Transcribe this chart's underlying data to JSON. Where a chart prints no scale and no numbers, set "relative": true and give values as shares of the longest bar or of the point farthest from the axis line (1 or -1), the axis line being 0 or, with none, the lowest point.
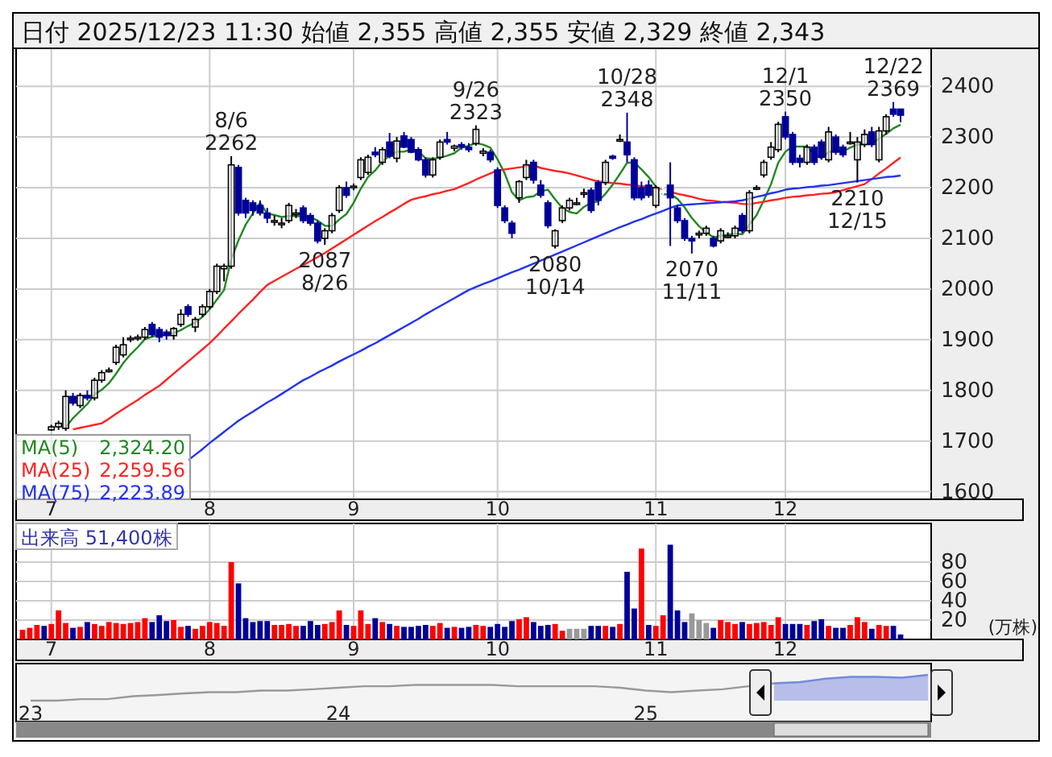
{
  "chart_data": [
    {
      "type": "candlestick",
      "title": "日付 2025/12/23 11:30 始値 2,355 高値 2,355 安値 2,329 終値 2,343",
      "categories": [
        null,
        null,
        null,
        null,
        "7",
        null,
        null,
        null,
        null,
        null,
        null,
        null,
        null,
        null,
        null,
        null,
        null,
        null,
        null,
        null,
        null,
        null,
        null,
        null,
        null,
        null,
        "8",
        null,
        null,
        null,
        null,
        null,
        null,
        null,
        null,
        null,
        null,
        null,
        null,
        null,
        null,
        null,
        null,
        null,
        null,
        null,
        "9",
        null,
        null,
        null,
        null,
        null,
        null,
        null,
        null,
        null,
        null,
        null,
        null,
        null,
        null,
        null,
        null,
        null,
        null,
        null,
        "10",
        null,
        null,
        null,
        null,
        null,
        null,
        null,
        null,
        null,
        null,
        null,
        null,
        null,
        null,
        null,
        null,
        null,
        null,
        null,
        null,
        null,
        "11",
        null,
        null,
        null,
        null,
        null,
        null,
        null,
        null,
        null,
        null,
        null,
        null,
        null,
        null,
        null,
        null,
        null,
        "12",
        null,
        null,
        null,
        null,
        null,
        null,
        null,
        null,
        null,
        null,
        null,
        null,
        null,
        null,
        null,
        null
      ],
      "colors": [
        null,
        null,
        null,
        null,
        "#ffffff",
        "#ffffff",
        "#ffffff",
        "#000099",
        "#ffffff",
        "#000099",
        "#ffffff",
        "#ffffff",
        "#ffffff",
        "#ffffff",
        "#ffffff",
        "#ffffff",
        "#ffffff",
        "#ffffff",
        "#000099",
        "#000099",
        "#000099",
        "#ffffff",
        "#ffffff",
        "#000099",
        "#ffffff",
        "#ffffff",
        "#ffffff",
        "#ffffff",
        "#ffffff",
        "#ffffff",
        "#000099",
        "#000099",
        "#000099",
        "#000099",
        "#000099",
        "#ffffff",
        "#ffffff",
        "#ffffff",
        "#ffffff",
        "#000099",
        "#000099",
        "#000099",
        "#ffffff",
        "#ffffff",
        "#ffffff",
        "#000099",
        "#ffffff",
        "#ffffff",
        "#ffffff",
        "#000099",
        "#ffffff",
        "#000099",
        "#ffffff",
        "#000099",
        "#000099",
        "#000099",
        "#000099",
        "#ffffff",
        "#ffffff",
        "#000099",
        "#ffffff",
        "#000099",
        "#000099",
        "#ffffff",
        "#ffffff",
        "#000099",
        "#000099",
        "#000099",
        "#000099",
        "#ffffff",
        "#ffffff",
        "#000099",
        "#000099",
        "#000099",
        "#ffffff",
        "#ffffff",
        "#ffffff",
        "#ffffff",
        "#ffffff",
        "#000099",
        "#000099",
        "#ffffff",
        "#000099",
        "#ffffff",
        "#000099",
        "#000099",
        "#000099",
        "#000099",
        "#ffffff",
        "#ffffff",
        "#000099",
        "#000099",
        "#000099",
        "#000099",
        "#ffffff",
        "#ffffff",
        "#000099",
        "#ffffff",
        "#ffffff",
        "#ffffff",
        "#000099",
        "#ffffff",
        "#ffffff",
        "#ffffff",
        "#ffffff",
        "#ffffff",
        "#000099",
        "#000099",
        "#000099",
        "#ffffff",
        "#000099",
        "#000099",
        "#ffffff",
        "#000099",
        "#000099",
        "#ffffff",
        "#ffffff",
        "#ffffff",
        "#000099",
        "#ffffff",
        "#ffffff",
        "#000099",
        "#000099"
      ],
      "ohlc": [
        null,
        null,
        null,
        null,
        [
          1722,
          1732,
          1720,
          1728
        ],
        [
          1728,
          1740,
          1722,
          1735
        ],
        [
          1725,
          1800,
          1720,
          1788
        ],
        [
          1788,
          1795,
          1770,
          1775
        ],
        [
          1770,
          1795,
          1765,
          1790
        ],
        [
          1790,
          1800,
          1780,
          1785
        ],
        [
          1785,
          1825,
          1780,
          1820
        ],
        [
          1820,
          1840,
          1815,
          1835
        ],
        [
          1840,
          1845,
          1835,
          1840
        ],
        [
          1855,
          1890,
          1850,
          1885
        ],
        [
          1870,
          1905,
          1865,
          1890
        ],
        [
          1900,
          1908,
          1895,
          1903
        ],
        [
          1903,
          1910,
          1898,
          1905
        ],
        [
          1905,
          1925,
          1900,
          1920
        ],
        [
          1930,
          1935,
          1905,
          1910
        ],
        [
          1920,
          1925,
          1895,
          1905
        ],
        [
          1915,
          1920,
          1900,
          1908
        ],
        [
          1908,
          1925,
          1900,
          1922
        ],
        [
          1930,
          1960,
          1925,
          1950
        ],
        [
          1965,
          1970,
          1945,
          1950
        ],
        [
          1925,
          1945,
          1915,
          1940
        ],
        [
          1950,
          1970,
          1945,
          1965
        ],
        [
          1965,
          2000,
          1960,
          1995
        ],
        [
          1995,
          2050,
          1990,
          2045
        ],
        [
          2040,
          2050,
          2015,
          2045
        ],
        [
          2045,
          2262,
          2040,
          2245
        ],
        [
          2240,
          2245,
          2145,
          2150
        ],
        [
          2175,
          2180,
          2140,
          2150
        ],
        [
          2170,
          2175,
          2145,
          2155
        ],
        [
          2165,
          2175,
          2145,
          2150
        ],
        [
          2150,
          2160,
          2130,
          2140
        ],
        [
          2135,
          2145,
          2125,
          2135
        ],
        [
          2130,
          2140,
          2120,
          2130
        ],
        [
          2135,
          2170,
          2130,
          2165
        ],
        [
          2150,
          2158,
          2140,
          2150
        ],
        [
          2160,
          2165,
          2130,
          2135
        ],
        [
          2145,
          2150,
          2125,
          2130
        ],
        [
          2130,
          2135,
          2090,
          2095
        ],
        [
          2100,
          2120,
          2087,
          2115
        ],
        [
          2115,
          2150,
          2110,
          2145
        ],
        [
          2155,
          2205,
          2150,
          2200
        ],
        [
          2200,
          2212,
          2180,
          2185
        ],
        [
          2203,
          2208,
          2195,
          2203
        ],
        [
          2220,
          2260,
          2215,
          2255
        ],
        [
          2230,
          2265,
          2225,
          2260
        ],
        [
          2270,
          2280,
          2260,
          2265
        ],
        [
          2250,
          2280,
          2245,
          2275
        ],
        [
          2290,
          2308,
          2258,
          2262
        ],
        [
          2258,
          2300,
          2250,
          2292
        ],
        [
          2302,
          2310,
          2278,
          2280
        ],
        [
          2295,
          2300,
          2268,
          2270
        ],
        [
          2275,
          2280,
          2252,
          2255
        ],
        [
          2255,
          2260,
          2220,
          2225
        ],
        [
          2225,
          2260,
          2220,
          2255
        ],
        [
          2260,
          2295,
          2255,
          2290
        ],
        [
          2295,
          2310,
          2285,
          2290
        ],
        [
          2278,
          2285,
          2272,
          2282
        ],
        [
          2285,
          2290,
          2275,
          2280
        ],
        [
          2280,
          2288,
          2270,
          2275
        ],
        [
          2287,
          2323,
          2283,
          2315
        ],
        [
          2268,
          2278,
          2262,
          2272
        ],
        [
          2270,
          2275,
          2250,
          2255
        ],
        [
          2235,
          2240,
          2160,
          2165
        ],
        [
          2160,
          2165,
          2130,
          2135
        ],
        [
          2130,
          2135,
          2100,
          2110
        ],
        [
          2180,
          2215,
          2170,
          2212
        ],
        [
          2220,
          2255,
          2215,
          2245
        ],
        [
          2250,
          2255,
          2208,
          2215
        ],
        [
          2205,
          2215,
          2180,
          2185
        ],
        [
          2170,
          2175,
          2120,
          2125
        ],
        [
          2085,
          2118,
          2080,
          2115
        ],
        [
          2135,
          2165,
          2130,
          2160
        ],
        [
          2160,
          2180,
          2155,
          2175
        ],
        [
          2170,
          2180,
          2165,
          2170
        ],
        [
          2190,
          2198,
          2180,
          2190
        ],
        [
          2195,
          2200,
          2150,
          2155
        ],
        [
          2210,
          2215,
          2165,
          2175
        ],
        [
          2210,
          2255,
          2205,
          2250
        ],
        [
          2262,
          2265,
          2255,
          2258
        ],
        [
          2295,
          2305,
          2290,
          2295
        ],
        [
          2290,
          2348,
          2250,
          2265
        ],
        [
          2255,
          2260,
          2175,
          2180
        ],
        [
          2200,
          2212,
          2175,
          2180
        ],
        [
          2205,
          2215,
          2180,
          2185
        ],
        [
          2165,
          2205,
          2160,
          2200
        ],
        [
          2195,
          2205,
          2185,
          2190
        ],
        [
          2205,
          2250,
          2085,
          2180
        ],
        [
          2160,
          2165,
          2130,
          2135
        ],
        [
          2135,
          2140,
          2095,
          2100
        ],
        [
          2100,
          2105,
          2070,
          2095
        ],
        [
          2110,
          2115,
          2100,
          2110
        ],
        [
          2110,
          2125,
          2105,
          2120
        ],
        [
          2100,
          2105,
          2082,
          2085
        ],
        [
          2095,
          2120,
          2090,
          2115
        ],
        [
          2105,
          2112,
          2100,
          2105
        ],
        [
          2105,
          2125,
          2100,
          2120
        ],
        [
          2145,
          2150,
          2110,
          2115
        ],
        [
          2115,
          2195,
          2110,
          2190
        ],
        [
          2200,
          2205,
          2195,
          2200
        ],
        [
          2225,
          2255,
          2220,
          2250
        ],
        [
          2260,
          2290,
          2255,
          2280
        ],
        [
          2275,
          2330,
          2270,
          2325
        ],
        [
          2340,
          2350,
          2295,
          2300
        ],
        [
          2305,
          2310,
          2245,
          2250
        ],
        [
          2258,
          2265,
          2240,
          2250
        ],
        [
          2250,
          2285,
          2245,
          2280
        ],
        [
          2280,
          2285,
          2245,
          2250
        ],
        [
          2290,
          2295,
          2255,
          2260
        ],
        [
          2255,
          2320,
          2250,
          2310
        ],
        [
          2300,
          2305,
          2265,
          2270
        ],
        [
          2280,
          2285,
          2260,
          2265
        ],
        [
          2290,
          2310,
          2285,
          2290
        ],
        [
          2255,
          2300,
          2210,
          2290
        ],
        [
          2285,
          2315,
          2280,
          2305
        ],
        [
          2310,
          2320,
          2280,
          2285
        ],
        [
          2255,
          2320,
          2250,
          2312
        ],
        [
          2312,
          2345,
          2305,
          2340
        ],
        [
          2355,
          2369,
          2340,
          2345
        ],
        [
          2355,
          2355,
          2329,
          2343
        ]
      ],
      "series": [
        {
          "name": "MA(5) 2,324.20",
          "type": "line",
          "color": "#228822",
          "values": [
            null,
            null,
            null,
            null,
            null,
            null,
            1727,
            1745,
            1759,
            1773,
            1792,
            1801,
            1814,
            1833,
            1854,
            1871,
            1885,
            1901,
            1906,
            1909,
            1910,
            1913,
            1919,
            1927,
            1934,
            1945,
            1960,
            1979,
            1998,
            2059,
            2096,
            2127,
            2149,
            2170,
            2149,
            2146,
            2142,
            2144,
            2144,
            2143,
            2142,
            2135,
            2125,
            2124,
            2137,
            2148,
            2170,
            2198,
            2221,
            2234,
            2252,
            2263,
            2271,
            2271,
            2276,
            2272,
            2258,
            2257,
            2259,
            2263,
            2268,
            2279,
            2283,
            2288,
            2285,
            2279,
            2256,
            2228,
            2191,
            2175,
            2181,
            2183,
            2193,
            2196,
            2177,
            2160,
            2152,
            2149,
            2162,
            2170,
            2173,
            2188,
            2206,
            2227,
            2249,
            2250,
            2236,
            2221,
            2202,
            2187,
            2187,
            2178,
            2161,
            2140,
            2124,
            2112,
            2102,
            2105,
            2107,
            2109,
            2108,
            2127,
            2146,
            2175,
            2207,
            2249,
            2271,
            2281,
            2281,
            2281,
            2266,
            2258,
            2270,
            2274,
            2271,
            2279,
            2285,
            2286,
            2287,
            2297,
            2306,
            2317,
            2324.2
          ]
        },
        {
          "name": "MA(25) 2,259.56",
          "type": "line",
          "color": "#ff2222",
          "values": [
            null,
            null,
            null,
            null,
            null,
            null,
            null,
            1723,
            1726,
            1729,
            1732,
            1735,
            1744,
            1754,
            1763,
            1772,
            1781,
            1791,
            1800,
            1809,
            1821,
            1833,
            1845,
            1857,
            1869,
            1881,
            1893,
            1907,
            1922,
            1936,
            1951,
            1965,
            1979,
            1994,
            2008,
            2016,
            2024,
            2032,
            2040,
            2047,
            2055,
            2063,
            2071,
            2080,
            2089,
            2098,
            2107,
            2116,
            2125,
            2134,
            2142,
            2151,
            2159,
            2168,
            2176,
            2180,
            2183,
            2187,
            2190,
            2194,
            2197,
            2203,
            2209,
            2216,
            2222,
            2228,
            2234,
            2236,
            2238,
            2240,
            2242,
            2244,
            2239,
            2236,
            2233,
            2231,
            2228,
            2224,
            2220,
            2216,
            2212,
            2211,
            2209,
            2208,
            2206,
            2205,
            2203,
            2202,
            2199,
            2195,
            2192,
            2188,
            2185,
            2182,
            2178,
            2175,
            2174,
            2172,
            2171,
            2170,
            2168,
            2167,
            2170,
            2172,
            2175,
            2177,
            2180,
            2182,
            2183,
            2185,
            2186,
            2188,
            2189,
            2191,
            2195,
            2199,
            2203,
            2207,
            2217,
            2228,
            2238,
            2249,
            2259.56
          ]
        },
        {
          "name": "MA(75) 2,223.89",
          "type": "line",
          "color": "#2233ee",
          "values": [
            null,
            null,
            null,
            null,
            null,
            null,
            null,
            null,
            null,
            null,
            null,
            null,
            null,
            null,
            null,
            null,
            null,
            null,
            null,
            null,
            null,
            null,
            null,
            1662,
            1673,
            1684,
            1696,
            1707,
            1718,
            1729,
            1740,
            1749,
            1758,
            1767,
            1776,
            1784,
            1793,
            1802,
            1811,
            1820,
            1827,
            1835,
            1842,
            1849,
            1857,
            1864,
            1871,
            1878,
            1886,
            1893,
            1901,
            1909,
            1917,
            1925,
            1933,
            1941,
            1950,
            1958,
            1966,
            1974,
            1982,
            1990,
            1998,
            2004,
            2010,
            2015,
            2021,
            2027,
            2033,
            2038,
            2044,
            2050,
            2056,
            2062,
            2068,
            2074,
            2080,
            2086,
            2092,
            2098,
            2104,
            2110,
            2116,
            2122,
            2127,
            2133,
            2138,
            2144,
            2149,
            2154,
            2160,
            2165,
            2166,
            2167,
            2168,
            2169,
            2170,
            2171,
            2172,
            2173,
            2175,
            2178,
            2182,
            2185,
            2189,
            2192,
            2196,
            2198,
            2199,
            2201,
            2202,
            2204,
            2205,
            2207,
            2209,
            2211,
            2213,
            2215,
            2217,
            2219,
            2221,
            2222,
            2223.89
          ]
        }
      ],
      "ylim": [
        1585,
        2475
      ],
      "yticks": [
        1600,
        1700,
        1800,
        1900,
        2000,
        2100,
        2200,
        2300,
        2400
      ],
      "grid": true,
      "legend": "bottom left",
      "annotations": [
        {
          "text": "8/6\n2262",
          "y": 2262
        },
        {
          "text": "2087\n8/26",
          "y": 2087
        },
        {
          "text": "9/26\n2323",
          "y": 2323
        },
        {
          "text": "2080\n10/14",
          "y": 2080
        },
        {
          "text": "10/28\n2348",
          "y": 2348
        },
        {
          "text": "2070\n11/11",
          "y": 2070
        },
        {
          "text": "12/1\n2350",
          "y": 2350
        },
        {
          "text": "2210\n12/15",
          "y": 2210
        },
        {
          "text": "12/22\n2369",
          "y": 2369
        }
      ]
    },
    {
      "type": "bar",
      "title": "出来高 51,400株",
      "ylabel": "(万株)",
      "categories": [
        null,
        null,
        null,
        null,
        "7",
        null,
        null,
        null,
        null,
        null,
        null,
        null,
        null,
        null,
        null,
        null,
        null,
        null,
        null,
        null,
        null,
        null,
        null,
        null,
        null,
        null,
        "8",
        null,
        null,
        null,
        null,
        null,
        null,
        null,
        null,
        null,
        null,
        null,
        null,
        null,
        null,
        null,
        null,
        null,
        null,
        null,
        "9",
        null,
        null,
        null,
        null,
        null,
        null,
        null,
        null,
        null,
        null,
        null,
        null,
        null,
        null,
        null,
        null,
        null,
        null,
        null,
        "10",
        null,
        null,
        null,
        null,
        null,
        null,
        null,
        null,
        null,
        null,
        null,
        null,
        null,
        null,
        null,
        null,
        null,
        null,
        null,
        null,
        null,
        "11",
        null,
        null,
        null,
        null,
        null,
        null,
        null,
        null,
        null,
        null,
        null,
        null,
        null,
        null,
        null,
        null,
        null,
        "12",
        null,
        null,
        null,
        null,
        null,
        null,
        null,
        null,
        null,
        null,
        null,
        null,
        null,
        null,
        null,
        null
      ],
      "values": [
        10,
        12,
        15,
        14,
        16,
        30,
        17,
        12,
        13,
        18,
        16,
        14,
        18,
        17,
        16,
        17,
        18,
        22,
        18,
        25,
        19,
        20,
        13,
        14,
        11,
        14,
        18,
        17,
        14,
        80,
        58,
        22,
        18,
        19,
        19,
        15,
        15,
        16,
        14,
        14,
        19,
        15,
        16,
        18,
        30,
        15,
        14,
        30,
        16,
        22,
        18,
        16,
        14,
        13,
        13,
        14,
        15,
        14,
        17,
        12,
        13,
        12,
        13,
        15,
        14,
        13,
        16,
        13,
        19,
        21,
        23,
        18,
        14,
        15,
        16,
        9,
        11,
        11,
        11,
        14,
        14,
        14,
        13,
        16,
        70,
        32,
        94,
        15,
        14,
        25,
        98,
        30,
        18,
        27,
        20,
        17,
        12,
        20,
        18,
        16,
        18,
        16,
        17,
        18,
        15,
        23,
        16,
        16,
        16,
        15,
        19,
        21,
        14,
        12,
        12,
        15,
        23,
        18,
        11,
        15,
        14,
        14,
        5.14
      ],
      "colors": [
        "#ff0000",
        "#ff0000",
        "#ff0000",
        "#000099",
        "#ff0000",
        "#ff0000",
        "#ff0000",
        "#000099",
        "#ff0000",
        "#000099",
        "#ff0000",
        "#ff0000",
        "#ff0000",
        "#ff0000",
        "#ff0000",
        "#ff0000",
        "#ff0000",
        "#ff0000",
        "#000099",
        "#000099",
        "#000099",
        "#ff0000",
        "#ff0000",
        "#000099",
        "#ff0000",
        "#ff0000",
        "#ff0000",
        "#ff0000",
        "#ff0000",
        "#ff0000",
        "#000099",
        "#000099",
        "#000099",
        "#000099",
        "#000099",
        "#ff0000",
        "#ff0000",
        "#ff0000",
        "#ff0000",
        "#000099",
        "#000099",
        "#000099",
        "#ff0000",
        "#ff0000",
        "#ff0000",
        "#000099",
        "#ff0000",
        "#ff0000",
        "#ff0000",
        "#000099",
        "#ff0000",
        "#000099",
        "#ff0000",
        "#000099",
        "#000099",
        "#000099",
        "#000099",
        "#ff0000",
        "#ff0000",
        "#000099",
        "#ff0000",
        "#000099",
        "#000099",
        "#ff0000",
        "#ff0000",
        "#000099",
        "#000099",
        "#000099",
        "#000099",
        "#ff0000",
        "#ff0000",
        "#000099",
        "#000099",
        "#000099",
        "#ff0000",
        "#ff0000",
        "#999999",
        "#999999",
        "#999999",
        "#000099",
        "#000099",
        "#ff0000",
        "#000099",
        "#ff0000",
        "#000099",
        "#000099",
        "#ff0000",
        "#000099",
        "#ff0000",
        "#ff0000",
        "#000099",
        "#000099",
        "#000099",
        "#999999",
        "#999999",
        "#999999",
        "#000099",
        "#ff0000",
        "#ff0000",
        "#ff0000",
        "#000099",
        "#ff0000",
        "#ff0000",
        "#ff0000",
        "#ff0000",
        "#ff0000",
        "#000099",
        "#000099",
        "#000099",
        "#ff0000",
        "#000099",
        "#000099",
        "#ff0000",
        "#000099",
        "#000099",
        "#ff0000",
        "#ff0000",
        "#ff0000",
        "#000099",
        "#ff0000",
        "#ff0000",
        "#000099",
        "#000099"
      ],
      "ylim": [
        0,
        120
      ],
      "yticks": [
        20,
        40,
        60,
        80
      ],
      "grid": true
    },
    {
      "type": "line",
      "relative": true,
      "tick_labels": "x",
      "categories": [
        "23",
        null,
        null,
        null,
        null,
        null,
        null,
        null,
        null,
        null,
        null,
        null,
        "24",
        null,
        null,
        null,
        null,
        null,
        null,
        null,
        null,
        null,
        null,
        null,
        "25",
        null,
        null,
        null,
        null,
        null,
        null,
        null,
        null,
        null,
        null,
        null
      ],
      "series": [
        {
          "type": "line",
          "color": "#999999",
          "values": [
            0,
            0,
            0.06,
            0.06,
            0.17,
            0.22,
            0.28,
            0.33,
            0.33,
            0.39,
            0.39,
            0.44,
            0.5,
            0.56,
            0.56,
            0.61,
            0.61,
            0.61,
            0.61,
            0.56,
            0.56,
            0.56,
            0.56,
            0.5,
            0.39,
            0.33,
            0.39,
            0.44,
            0.56,
            0.67,
            null,
            null,
            null,
            null,
            null,
            null
          ]
        },
        {
          "type": "area",
          "color": "#7788dd",
          "values": [
            null,
            null,
            null,
            null,
            null,
            null,
            null,
            null,
            null,
            null,
            null,
            null,
            null,
            null,
            null,
            null,
            null,
            null,
            null,
            null,
            null,
            null,
            null,
            null,
            null,
            null,
            null,
            null,
            null,
            0.67,
            0.72,
            0.85,
            0.92,
            0.92,
            0.89,
            1
          ]
        }
      ]
    }
  ]
}
